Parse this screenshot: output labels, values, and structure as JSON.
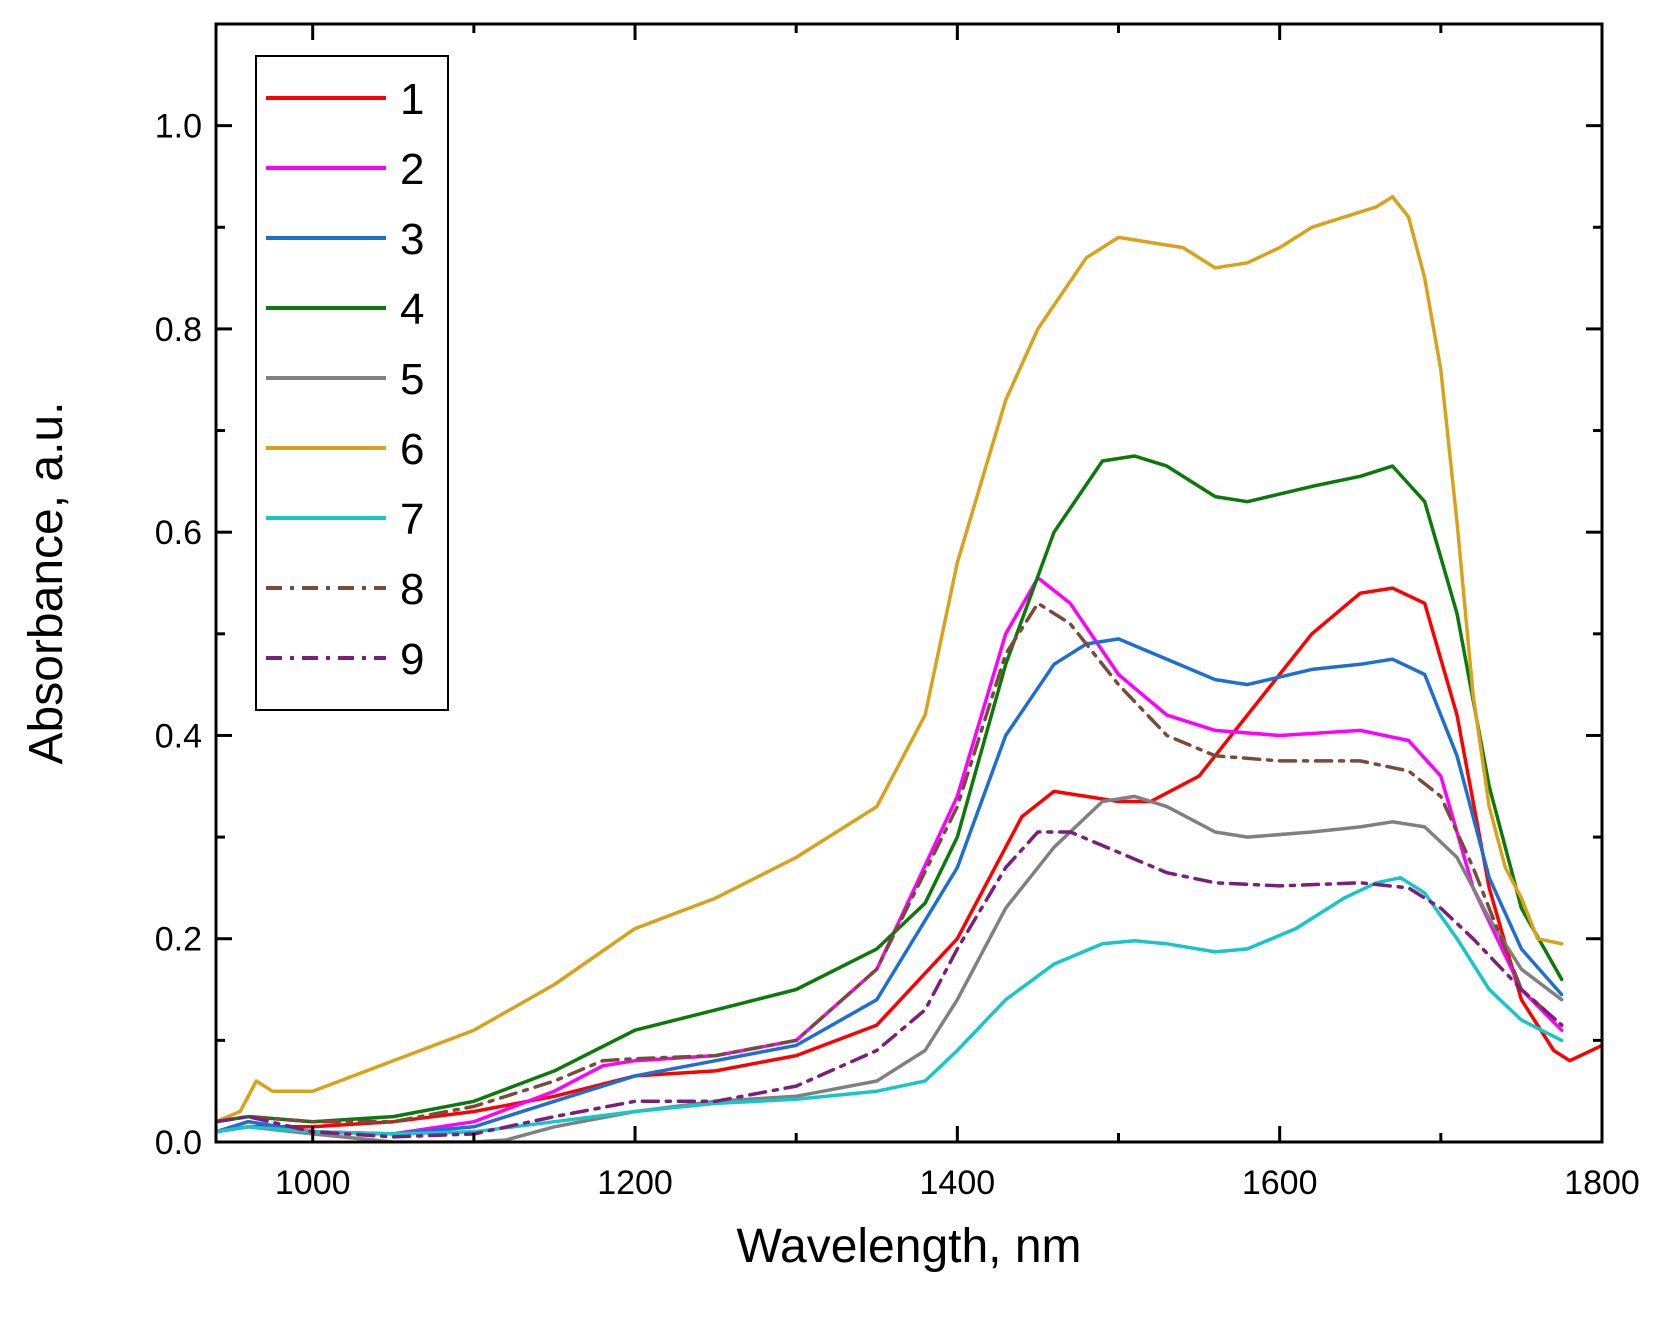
{
  "chart_data": {
    "type": "line",
    "title": "",
    "xlabel": "Wavelength, nm",
    "ylabel": "Absorbance, a.u.",
    "xlim": [
      940,
      1800
    ],
    "ylim": [
      0,
      1.1
    ],
    "xticks": [
      "1000",
      "1200",
      "1400",
      "1600",
      "1800"
    ],
    "yticks": [
      "0.0",
      "0.2",
      "0.4",
      "0.6",
      "0.8",
      "1.0"
    ],
    "legend_position": "top-left",
    "series": [
      {
        "name": "1",
        "color": "#ff0000",
        "dash": "solid",
        "x": [
          940,
          960,
          1000,
          1050,
          1100,
          1150,
          1200,
          1250,
          1300,
          1350,
          1400,
          1440,
          1460,
          1480,
          1500,
          1520,
          1550,
          1580,
          1620,
          1650,
          1670,
          1690,
          1710,
          1730,
          1750,
          1770,
          1780,
          1800
        ],
        "y": [
          0.01,
          0.015,
          0.015,
          0.02,
          0.03,
          0.045,
          0.065,
          0.07,
          0.085,
          0.115,
          0.2,
          0.32,
          0.345,
          0.34,
          0.335,
          0.335,
          0.36,
          0.42,
          0.5,
          0.54,
          0.545,
          0.53,
          0.42,
          0.25,
          0.14,
          0.09,
          0.08,
          0.095
        ]
      },
      {
        "name": "2",
        "color": "#ff00ff",
        "dash": "solid",
        "x": [
          940,
          960,
          1000,
          1050,
          1100,
          1150,
          1180,
          1200,
          1250,
          1300,
          1350,
          1400,
          1430,
          1450,
          1470,
          1500,
          1530,
          1560,
          1600,
          1650,
          1680,
          1700,
          1720,
          1750,
          1775
        ],
        "y": [
          0.01,
          0.02,
          0.01,
          0.008,
          0.02,
          0.05,
          0.075,
          0.08,
          0.085,
          0.1,
          0.17,
          0.34,
          0.5,
          0.555,
          0.53,
          0.46,
          0.42,
          0.405,
          0.4,
          0.405,
          0.395,
          0.36,
          0.25,
          0.15,
          0.11
        ]
      },
      {
        "name": "3",
        "color": "#1f6fd0",
        "dash": "solid",
        "x": [
          940,
          960,
          1000,
          1050,
          1100,
          1150,
          1200,
          1250,
          1300,
          1350,
          1400,
          1430,
          1460,
          1480,
          1500,
          1530,
          1560,
          1580,
          1620,
          1650,
          1670,
          1690,
          1710,
          1730,
          1750,
          1775
        ],
        "y": [
          0.01,
          0.02,
          0.01,
          0.008,
          0.015,
          0.04,
          0.065,
          0.08,
          0.095,
          0.14,
          0.27,
          0.4,
          0.47,
          0.49,
          0.495,
          0.475,
          0.455,
          0.45,
          0.465,
          0.47,
          0.475,
          0.46,
          0.38,
          0.26,
          0.19,
          0.145
        ]
      },
      {
        "name": "4",
        "color": "#0b7a0b",
        "dash": "solid",
        "x": [
          940,
          960,
          1000,
          1050,
          1100,
          1150,
          1200,
          1250,
          1300,
          1350,
          1380,
          1400,
          1430,
          1460,
          1490,
          1510,
          1530,
          1560,
          1580,
          1620,
          1650,
          1670,
          1690,
          1710,
          1730,
          1750,
          1775
        ],
        "y": [
          0.02,
          0.025,
          0.02,
          0.025,
          0.04,
          0.07,
          0.11,
          0.13,
          0.15,
          0.19,
          0.235,
          0.3,
          0.47,
          0.6,
          0.67,
          0.675,
          0.665,
          0.635,
          0.63,
          0.645,
          0.655,
          0.665,
          0.63,
          0.52,
          0.35,
          0.23,
          0.16
        ]
      },
      {
        "name": "5",
        "color": "#808080",
        "dash": "solid",
        "x": [
          940,
          960,
          1000,
          1050,
          1100,
          1120,
          1150,
          1200,
          1250,
          1300,
          1350,
          1380,
          1400,
          1430,
          1460,
          1490,
          1510,
          1530,
          1560,
          1580,
          1620,
          1650,
          1670,
          1690,
          1710,
          1730,
          1750,
          1775
        ],
        "y": [
          0.01,
          0.015,
          0.008,
          0.0,
          0.0,
          0.002,
          0.015,
          0.03,
          0.04,
          0.045,
          0.06,
          0.09,
          0.14,
          0.23,
          0.29,
          0.335,
          0.34,
          0.33,
          0.305,
          0.3,
          0.305,
          0.31,
          0.315,
          0.31,
          0.28,
          0.22,
          0.17,
          0.14
        ]
      },
      {
        "name": "6",
        "color": "#d9a21b",
        "dash": "solid",
        "x": [
          940,
          955,
          965,
          975,
          1000,
          1050,
          1100,
          1150,
          1200,
          1250,
          1300,
          1350,
          1380,
          1400,
          1430,
          1450,
          1480,
          1500,
          1520,
          1540,
          1560,
          1580,
          1600,
          1620,
          1640,
          1660,
          1670,
          1680,
          1690,
          1700,
          1710,
          1720,
          1730,
          1740,
          1750,
          1760,
          1775
        ],
        "y": [
          0.02,
          0.03,
          0.06,
          0.05,
          0.05,
          0.08,
          0.11,
          0.155,
          0.21,
          0.24,
          0.28,
          0.33,
          0.42,
          0.57,
          0.73,
          0.8,
          0.87,
          0.89,
          0.885,
          0.88,
          0.86,
          0.865,
          0.88,
          0.9,
          0.91,
          0.92,
          0.93,
          0.91,
          0.85,
          0.76,
          0.61,
          0.44,
          0.33,
          0.27,
          0.24,
          0.2,
          0.195
        ]
      },
      {
        "name": "7",
        "color": "#17c6c6",
        "dash": "solid",
        "x": [
          940,
          960,
          1000,
          1050,
          1100,
          1150,
          1200,
          1250,
          1300,
          1350,
          1380,
          1400,
          1430,
          1460,
          1490,
          1510,
          1530,
          1560,
          1580,
          1610,
          1640,
          1660,
          1675,
          1690,
          1710,
          1730,
          1750,
          1775
        ],
        "y": [
          0.01,
          0.015,
          0.01,
          0.008,
          0.01,
          0.02,
          0.03,
          0.038,
          0.042,
          0.05,
          0.06,
          0.09,
          0.14,
          0.175,
          0.195,
          0.198,
          0.195,
          0.187,
          0.19,
          0.21,
          0.24,
          0.255,
          0.26,
          0.245,
          0.2,
          0.15,
          0.12,
          0.1
        ]
      },
      {
        "name": "8",
        "color": "#7a4a3a",
        "dash": "dashdot",
        "x": [
          940,
          960,
          1000,
          1050,
          1100,
          1150,
          1180,
          1200,
          1250,
          1300,
          1350,
          1400,
          1430,
          1450,
          1470,
          1500,
          1530,
          1560,
          1600,
          1650,
          1680,
          1700,
          1720,
          1750,
          1775
        ],
        "y": [
          0.02,
          0.025,
          0.02,
          0.02,
          0.035,
          0.06,
          0.08,
          0.082,
          0.085,
          0.1,
          0.17,
          0.33,
          0.48,
          0.53,
          0.51,
          0.45,
          0.4,
          0.38,
          0.375,
          0.375,
          0.365,
          0.34,
          0.27,
          0.15,
          0.115
        ]
      },
      {
        "name": "9",
        "color": "#7a1f7a",
        "dash": "dashdot",
        "x": [
          940,
          960,
          1000,
          1050,
          1100,
          1150,
          1200,
          1250,
          1300,
          1350,
          1380,
          1400,
          1430,
          1450,
          1470,
          1500,
          1530,
          1560,
          1600,
          1650,
          1680,
          1700,
          1720,
          1750,
          1775
        ],
        "y": [
          0.02,
          0.025,
          0.01,
          0.005,
          0.008,
          0.025,
          0.04,
          0.04,
          0.055,
          0.09,
          0.13,
          0.19,
          0.27,
          0.305,
          0.305,
          0.285,
          0.265,
          0.255,
          0.252,
          0.255,
          0.25,
          0.23,
          0.2,
          0.15,
          0.115
        ]
      }
    ]
  }
}
